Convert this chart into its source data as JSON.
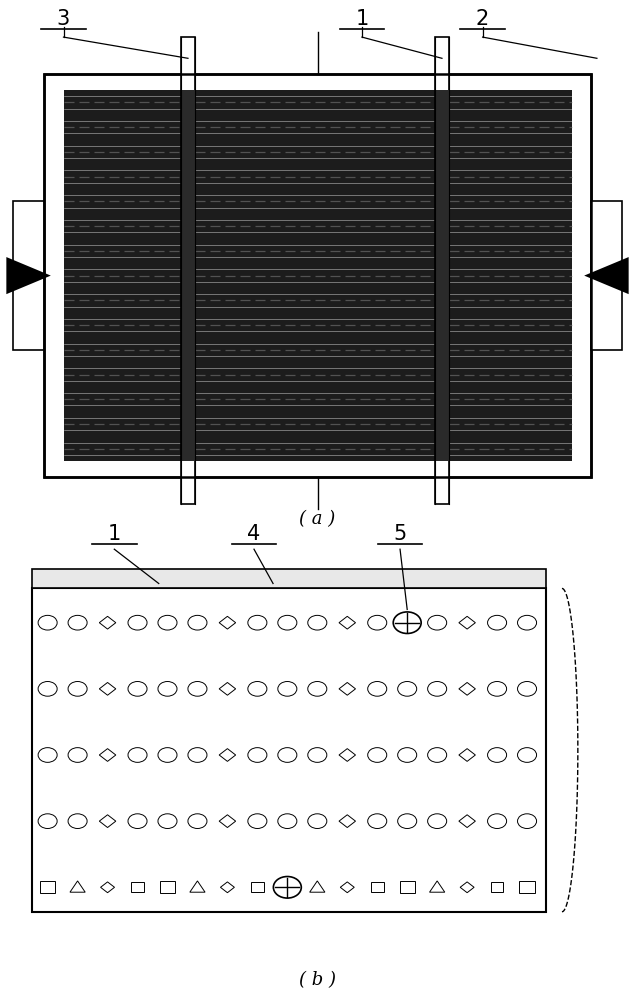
{
  "bg_color": "#ffffff",
  "fig_width": 6.35,
  "fig_height": 10.0,
  "label_a": "( a )",
  "label_b": "( b )"
}
